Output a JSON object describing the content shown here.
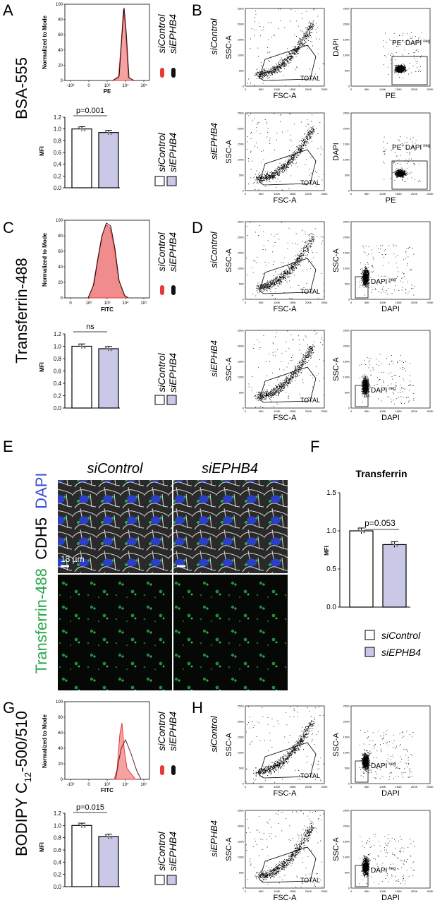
{
  "panels": {
    "A": {
      "letter": "A",
      "side": "BSA-555",
      "hist": {
        "ylabel": "Normalized to Mode",
        "xlabel": "PE",
        "yticks": [
          "0",
          "20",
          "40",
          "60",
          "80",
          "100"
        ],
        "xticks": [
          "-10³",
          "0",
          "10³",
          "10⁴",
          "10⁵"
        ]
      },
      "bar": {
        "ylabel": "MFI",
        "pval": "p=0.001",
        "yticks": [
          "0.0",
          "0.2",
          "0.4",
          "0.6",
          "0.8",
          "1.0",
          "1.2"
        ]
      }
    },
    "B": {
      "letter": "B",
      "rows": [
        {
          "sample": "siControl",
          "gate": "TOTAL",
          "xlab": "FSC-A",
          "ylab": "SSC-A",
          "gate2": "PE",
          "gate2sup": "+",
          "gate2b": "DAPI",
          "gate2bsup": "neg",
          "xlab2": "PE",
          "ylab2": "DAPI"
        },
        {
          "sample": "siEPHB4",
          "gate": "TOTAL",
          "xlab": "FSC-A",
          "ylab": "SSC-A",
          "gate2": "PE",
          "gate2sup": "+",
          "gate2b": "DAPI",
          "gate2bsup": "neg",
          "xlab2": "PE",
          "ylab2": "DAPI"
        }
      ]
    },
    "C": {
      "letter": "C",
      "side": "Transferrin-488",
      "hist": {
        "ylabel": "Normalized to Mode",
        "xlabel": "FITC",
        "yticks": [
          "0",
          "20",
          "40",
          "60",
          "80",
          "100"
        ],
        "xticks": [
          "0",
          "10²",
          "10³",
          "10⁴",
          "10⁵"
        ]
      },
      "bar": {
        "ylabel": "MFI",
        "pval": "ns",
        "yticks": [
          "0.0",
          "0.2",
          "0.4",
          "0.6",
          "0.8",
          "1.0",
          "1.2"
        ]
      }
    },
    "D": {
      "letter": "D",
      "rows": [
        {
          "sample": "siControl",
          "gate": "TOTAL",
          "xlab": "FSC-A",
          "ylab": "SSC-A",
          "gate2": "DAPI",
          "gate2sup": "neg",
          "xlab2": "DAPI",
          "ylab2": "SSC-A"
        },
        {
          "sample": "siEPHB4",
          "gate": "TOTAL",
          "xlab": "FSC-A",
          "ylab": "SSC-A",
          "gate2": "DAPI",
          "gate2sup": "neg",
          "xlab2": "DAPI",
          "ylab2": "SSC-A"
        }
      ]
    },
    "E": {
      "letter": "E",
      "col1": "siControl",
      "col2": "siEPHB4",
      "scale": "13 µm",
      "side_green": "Transferrin-488",
      "side_white": "CDH5",
      "side_blue": "DAPI"
    },
    "F": {
      "letter": "F",
      "title": "Transferrin",
      "ylabel": "MFI",
      "pval": "p=0.053",
      "yticks": [
        "0.0",
        "0.5",
        "1.0",
        "1.5"
      ]
    },
    "G": {
      "letter": "G",
      "side_main": "BODIPY C",
      "side_sub": "12",
      "side_tail": "-500/510",
      "hist": {
        "ylabel": "Normalized to Mode",
        "xlabel": "FITC",
        "yticks": [
          "0",
          "20",
          "40",
          "60",
          "80",
          "100"
        ],
        "xticks": [
          "-10³",
          "0",
          "10³",
          "10⁴",
          "10⁵"
        ]
      },
      "bar": {
        "ylabel": "MFI",
        "pval": "p=0.015",
        "yticks": [
          "0.0",
          "0.2",
          "0.4",
          "0.6",
          "0.8",
          "1.0",
          "1.2"
        ]
      }
    },
    "H": {
      "letter": "H",
      "rows": [
        {
          "sample": "siControl",
          "gate": "TOTAL",
          "xlab": "FSC-A",
          "ylab": "SSC-A",
          "gate2": "DAPI",
          "gate2sup": "neg",
          "xlab2": "DAPI",
          "ylab2": "SSC-A"
        },
        {
          "sample": "siEPHB4",
          "gate": "TOTAL",
          "xlab": "FSC-A",
          "ylab": "SSC-A",
          "gate2": "DAPI",
          "gate2sup": "neg",
          "xlab2": "DAPI",
          "ylab2": "SSC-A"
        }
      ]
    }
  },
  "legend": {
    "ctrl": "siControl",
    "ephb4": "siEPHB4"
  },
  "colors": {
    "ctrl_hist": "#e8393a",
    "ephb4_hist": "#111111",
    "bar_ctrl": "#ffffff",
    "bar_ephb4": "#c9c8e6",
    "green": "#2aa84a",
    "blue": "#3a4fd6"
  },
  "chart_data": [
    {
      "type": "bar",
      "panel": "A",
      "categories": [
        "siControl",
        "siEPHB4"
      ],
      "values": [
        1.0,
        0.94
      ],
      "ylim": [
        0,
        1.2
      ]
    },
    {
      "type": "bar",
      "panel": "C",
      "categories": [
        "siControl",
        "siEPHB4"
      ],
      "values": [
        1.0,
        0.96
      ],
      "ylim": [
        0,
        1.2
      ]
    },
    {
      "type": "bar",
      "panel": "F",
      "title": "Transferrin",
      "categories": [
        "siControl",
        "siEPHB4"
      ],
      "values": [
        1.0,
        0.82
      ],
      "ylim": [
        0,
        1.5
      ]
    },
    {
      "type": "bar",
      "panel": "G",
      "categories": [
        "siControl",
        "siEPHB4"
      ],
      "values": [
        1.0,
        0.82
      ],
      "ylim": [
        0,
        1.2
      ]
    }
  ]
}
